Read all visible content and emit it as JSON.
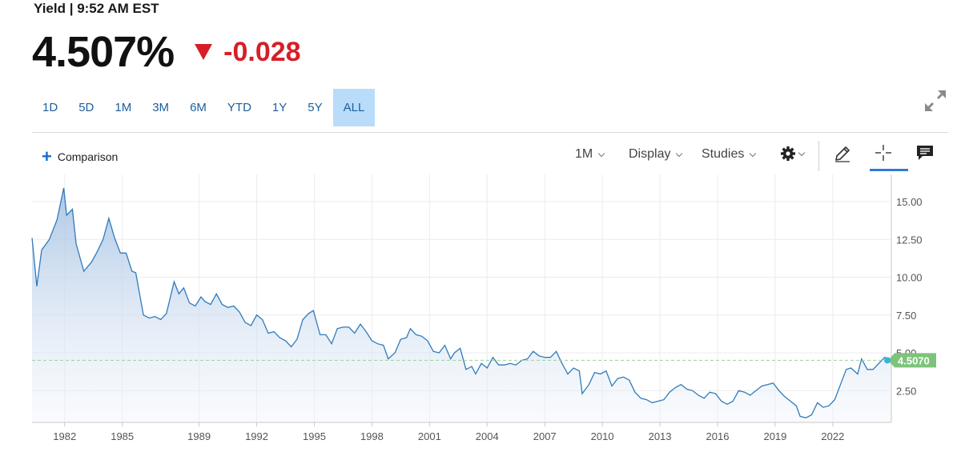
{
  "quote": {
    "title": "Yield | 9:52 AM EST",
    "price": "4.507%",
    "change": "-0.028"
  },
  "range_tabs": [
    {
      "label": "1D"
    },
    {
      "label": "5D"
    },
    {
      "label": "1M"
    },
    {
      "label": "3M"
    },
    {
      "label": "6M"
    },
    {
      "label": "YTD"
    },
    {
      "label": "1Y"
    },
    {
      "label": "5Y"
    },
    {
      "label": "ALL",
      "active": true
    }
  ],
  "toolbar": {
    "comparison": "Comparison",
    "interval": "1M",
    "display": "Display",
    "studies": "Studies"
  },
  "icons": [
    "expand-icon",
    "plus-icon",
    "gear-icon",
    "pencil-icon",
    "crosshair-icon",
    "comment-icon"
  ],
  "colors": {
    "line": "#2f7bbd",
    "fill_top": "#b7cfe9",
    "down": "#d71e28",
    "last_value_badge": "#7cc47a",
    "active_tab": "#b9dcfb"
  },
  "chart_data": {
    "type": "area",
    "xlim": [
      1980.3,
      2025.05
    ],
    "ylim": [
      0.4,
      16.8
    ],
    "x_ticks": [
      "1982",
      "1985",
      "1989",
      "1992",
      "1995",
      "1998",
      "2001",
      "2004",
      "2007",
      "2010",
      "2013",
      "2016",
      "2019",
      "2022"
    ],
    "y_ticks": [
      "15.00",
      "12.50",
      "10.00",
      "7.50",
      "5.00",
      "2.50"
    ],
    "last_value": 4.507,
    "last_value_label": "4.5070",
    "series": [
      {
        "x": [
          1980.3,
          1980.55,
          1980.8,
          1981.2,
          1981.6,
          1981.95,
          1982.1,
          1982.4,
          1982.6,
          1983.0,
          1983.4,
          1983.7,
          1984.0,
          1984.3,
          1984.6,
          1984.9,
          1985.2,
          1985.5,
          1985.7,
          1986.1,
          1986.4,
          1986.7,
          1987.0,
          1987.3,
          1987.7,
          1987.95,
          1988.2,
          1988.5,
          1988.8,
          1989.1,
          1989.3,
          1989.6,
          1989.9,
          1990.2,
          1990.5,
          1990.8,
          1991.1,
          1991.4,
          1991.7,
          1992.0,
          1992.3,
          1992.6,
          1992.9,
          1993.2,
          1993.5,
          1993.8,
          1994.1,
          1994.4,
          1994.7,
          1994.95,
          1995.3,
          1995.6,
          1995.9,
          1996.2,
          1996.5,
          1996.8,
          1997.1,
          1997.4,
          1997.7,
          1998.0,
          1998.3,
          1998.6,
          1998.85,
          1999.2,
          1999.5,
          1999.8,
          2000.0,
          2000.3,
          2000.6,
          2000.9,
          2001.2,
          2001.5,
          2001.8,
          2002.1,
          2002.3,
          2002.6,
          2002.9,
          2003.2,
          2003.4,
          2003.7,
          2004.0,
          2004.3,
          2004.6,
          2004.9,
          2005.2,
          2005.5,
          2005.8,
          2006.1,
          2006.4,
          2006.7,
          2007.0,
          2007.3,
          2007.6,
          2007.9,
          2008.2,
          2008.5,
          2008.8,
          2008.95,
          2009.3,
          2009.6,
          2009.9,
          2010.2,
          2010.5,
          2010.8,
          2011.1,
          2011.4,
          2011.7,
          2012.0,
          2012.3,
          2012.6,
          2012.9,
          2013.2,
          2013.5,
          2013.8,
          2014.1,
          2014.4,
          2014.7,
          2015.0,
          2015.3,
          2015.6,
          2015.9,
          2016.2,
          2016.5,
          2016.8,
          2017.1,
          2017.4,
          2017.7,
          2018.0,
          2018.3,
          2018.6,
          2018.9,
          2019.2,
          2019.5,
          2019.8,
          2020.1,
          2020.3,
          2020.6,
          2020.9,
          2021.2,
          2021.5,
          2021.8,
          2022.1,
          2022.4,
          2022.7,
          2022.95,
          2023.3,
          2023.5,
          2023.8,
          2024.1,
          2024.4,
          2024.7,
          2025.05
        ],
        "y": [
          12.6,
          9.4,
          11.8,
          12.5,
          13.8,
          15.9,
          14.1,
          14.5,
          12.2,
          10.4,
          11.0,
          11.7,
          12.5,
          13.9,
          12.6,
          11.6,
          11.6,
          10.4,
          10.3,
          7.5,
          7.3,
          7.4,
          7.2,
          7.6,
          9.7,
          8.9,
          9.3,
          8.3,
          8.1,
          8.7,
          8.4,
          8.2,
          8.9,
          8.2,
          8.0,
          8.1,
          7.7,
          7.0,
          6.8,
          7.5,
          7.2,
          6.3,
          6.4,
          6.0,
          5.8,
          5.4,
          5.9,
          7.2,
          7.6,
          7.8,
          6.2,
          6.2,
          5.6,
          6.6,
          6.7,
          6.7,
          6.3,
          6.9,
          6.4,
          5.8,
          5.6,
          5.5,
          4.6,
          5.0,
          5.9,
          6.0,
          6.6,
          6.2,
          6.1,
          5.8,
          5.1,
          5.0,
          5.5,
          4.6,
          5.0,
          5.3,
          3.9,
          4.1,
          3.6,
          4.3,
          4.0,
          4.7,
          4.2,
          4.2,
          4.3,
          4.2,
          4.5,
          4.6,
          5.1,
          4.8,
          4.7,
          4.7,
          5.1,
          4.3,
          3.6,
          4.0,
          3.8,
          2.3,
          2.9,
          3.7,
          3.6,
          3.8,
          2.8,
          3.3,
          3.4,
          3.2,
          2.4,
          2.0,
          1.9,
          1.7,
          1.8,
          1.9,
          2.4,
          2.7,
          2.9,
          2.6,
          2.5,
          2.2,
          2.0,
          2.4,
          2.3,
          1.8,
          1.6,
          1.8,
          2.5,
          2.4,
          2.2,
          2.5,
          2.8,
          2.9,
          3.0,
          2.5,
          2.1,
          1.8,
          1.5,
          0.8,
          0.7,
          0.9,
          1.7,
          1.4,
          1.5,
          1.9,
          2.9,
          3.9,
          4.0,
          3.6,
          4.6,
          3.9,
          3.9,
          4.3,
          4.7,
          4.507
        ]
      }
    ]
  }
}
